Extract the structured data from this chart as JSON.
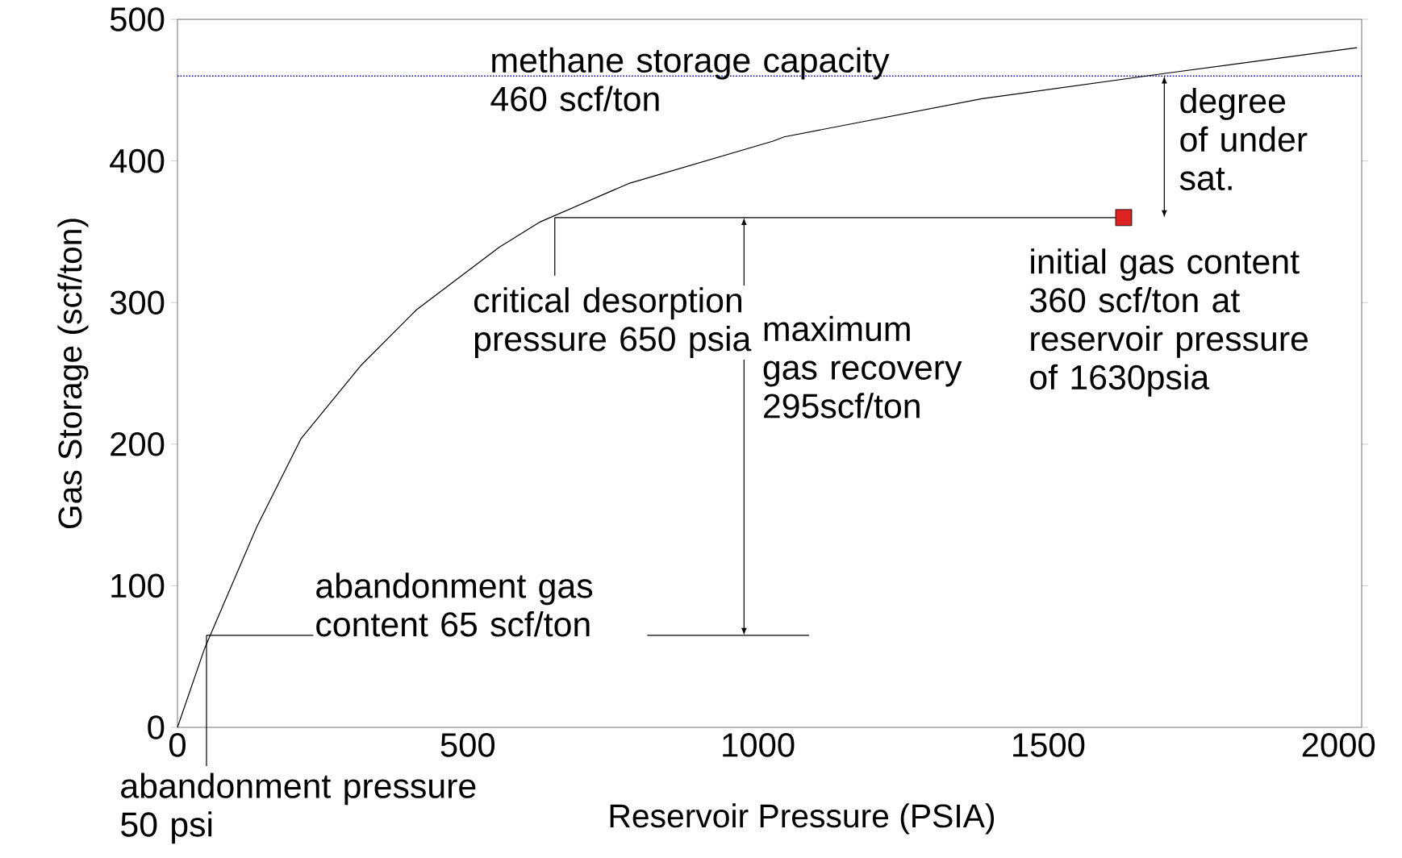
{
  "chart_data": {
    "type": "line",
    "xlabel": "Reservoir Pressure (PSIA)",
    "ylabel": "Gas Storage (scf/ton)",
    "xlim": [
      0,
      2040
    ],
    "ylim": [
      0,
      500
    ],
    "xticks": [
      0,
      500,
      1000,
      1500,
      2000
    ],
    "yticks": [
      0,
      100,
      200,
      300,
      400,
      500
    ],
    "series": [
      {
        "color": "#000000",
        "x": [
          0,
          47,
          137,
          213,
          317,
          412,
          554,
          625,
          777,
          1026,
          1045,
          1386,
          1704,
          2032
        ],
        "values": [
          0,
          56,
          142,
          204,
          256,
          295,
          339,
          357,
          384,
          414,
          417,
          444,
          462,
          480
        ]
      },
      {
        "type": "scatter",
        "marker": "square",
        "color": "#dd2222",
        "x": [
          1630
        ],
        "values": [
          360
        ]
      }
    ],
    "ref_lines": [
      {
        "axis": "y",
        "value": 460,
        "label": "methane storage capacity 460 scf/ton",
        "color": "#0000cc",
        "line_style": "dotted"
      },
      {
        "axis": "y",
        "value": 65,
        "label": "abandonment gas content 65 scf/ton",
        "color": "#000000",
        "line_style": "solid"
      },
      {
        "axis": "x",
        "value": 50,
        "label": "abandonment pressure 50 psi",
        "color": "#000000",
        "line_style": "solid"
      }
    ],
    "annotations": [
      {
        "text": "critical desorption pressure 650 psia",
        "x": 650,
        "y": 360
      },
      {
        "text": "initial gas content 360 scf/ton at reservoir pressure of 1630psia",
        "x": 1630,
        "y": 360
      },
      "maximum gas recovery 295scf/ton",
      "degree of under sat."
    ]
  }
}
